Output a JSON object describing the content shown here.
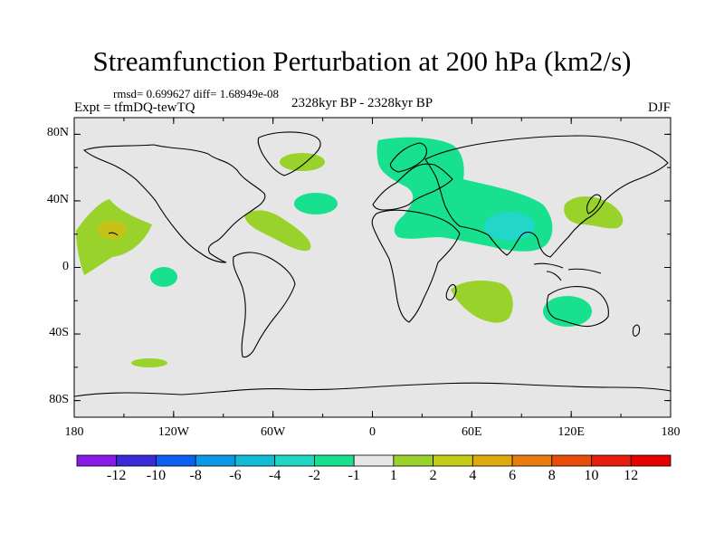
{
  "title": "Streamfunction Perturbation at 200 hPa (km2/s)",
  "stats": "rmsd= 0.699627 diff= 1.68949e-08",
  "experiment": "Expt = tfmDQ-tewTQ",
  "period": "2328kyr BP - 2328kyr BP",
  "season": "DJF",
  "colors": {
    "ocean_land_neutral": "#e6e6e6",
    "coast": "#000000",
    "neg1_to_neg2": "#17e08f",
    "neg2_to_neg4": "#22d6c8",
    "pos1_to_2": "#99d22a"
  },
  "chart_data": {
    "type": "contour-map",
    "projection": "cylindrical-equidistant",
    "xlim": [
      -180,
      180
    ],
    "ylim": [
      -90,
      90
    ],
    "lat_ticks": [
      {
        "value": 80,
        "label": "80N"
      },
      {
        "value": 40,
        "label": "40N"
      },
      {
        "value": 0,
        "label": "0"
      },
      {
        "value": -40,
        "label": "40S"
      },
      {
        "value": -80,
        "label": "80S"
      }
    ],
    "lon_ticks": [
      {
        "value": -180,
        "label": "180"
      },
      {
        "value": -120,
        "label": "120W"
      },
      {
        "value": -60,
        "label": "60W"
      },
      {
        "value": 0,
        "label": "0"
      },
      {
        "value": 60,
        "label": "60E"
      },
      {
        "value": 120,
        "label": "120E"
      },
      {
        "value": 180,
        "label": "180"
      }
    ],
    "colorbar": {
      "labels": [
        "-12",
        "-10",
        "-8",
        "-6",
        "-4",
        "-2",
        "-1",
        "1",
        "2",
        "4",
        "6",
        "8",
        "10",
        "12"
      ],
      "colors": [
        "#8a1ae6",
        "#3a2bd9",
        "#0c5ff0",
        "#0a99e6",
        "#12bcd6",
        "#1fd6c2",
        "#18e08f",
        "#e6e6e6",
        "#99d22a",
        "#c3cd16",
        "#e0aa0e",
        "#e67d0c",
        "#e84e0a",
        "#e41e0a",
        "#e60000"
      ]
    },
    "regions": [
      {
        "name": "north-pacific-high",
        "sign": "positive",
        "level": "1 to 2",
        "center_lon": -163,
        "center_lat": 18
      },
      {
        "name": "north-pacific-core",
        "sign": "positive",
        "level": "2 to 4",
        "center_lon": -160,
        "center_lat": 22
      },
      {
        "name": "equatorial-pacific-low",
        "sign": "negative",
        "level": "-1 to -2",
        "center_lon": -136,
        "center_lat": -5
      },
      {
        "name": "south-pacific-high",
        "sign": "positive",
        "level": "1 to 2",
        "center_lon": -138,
        "center_lat": -58
      },
      {
        "name": "west-atlantic-high",
        "sign": "positive",
        "level": "1 to 2",
        "center_lon": -55,
        "center_lat": 28
      },
      {
        "name": "mid-atlantic-low",
        "sign": "negative",
        "level": "-1 to -2",
        "center_lon": -35,
        "center_lat": 38
      },
      {
        "name": "greenland-high",
        "sign": "positive",
        "level": "1 to 2",
        "center_lon": -42,
        "center_lat": 64
      },
      {
        "name": "eurasia-low",
        "sign": "negative",
        "level": "-1 to -2",
        "center_lon": 55,
        "center_lat": 50
      },
      {
        "name": "south-asia-core",
        "sign": "negative",
        "level": "-2 to -4",
        "center_lon": 84,
        "center_lat": 27
      },
      {
        "name": "japan-high",
        "sign": "positive",
        "level": "1 to 2",
        "center_lon": 135,
        "center_lat": 35
      },
      {
        "name": "south-indian-high",
        "sign": "positive",
        "level": "1 to 2",
        "center_lon": 63,
        "center_lat": -25
      },
      {
        "name": "australia-low",
        "sign": "negative",
        "level": "-1 to -2",
        "center_lon": 120,
        "center_lat": -28
      }
    ]
  }
}
